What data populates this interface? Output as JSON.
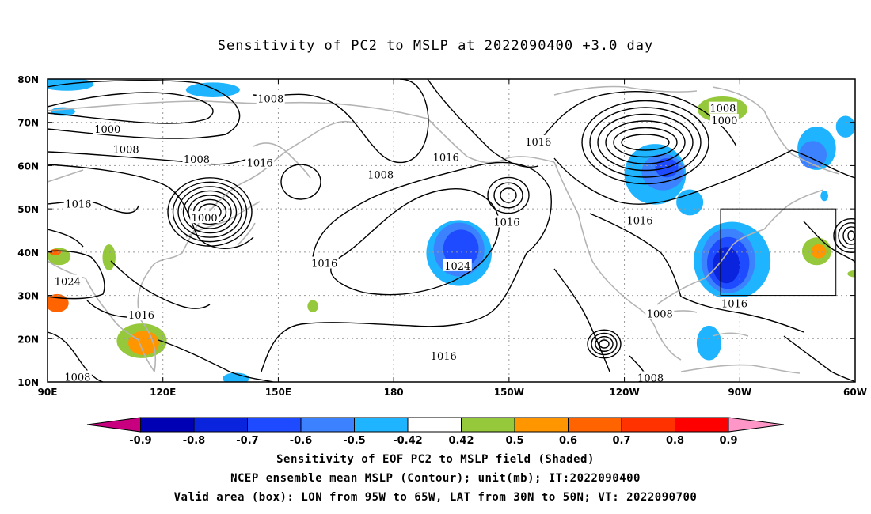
{
  "title": "Sensitivity of PC2 to MSLP at 2022090400 +3.0 day",
  "map": {
    "projection": "cylindrical-equidistant",
    "lon_range": [
      90,
      300
    ],
    "lat_range": [
      10,
      80
    ],
    "lat_ticks": [
      "80N",
      "70N",
      "60N",
      "50N",
      "40N",
      "30N",
      "20N",
      "10N"
    ],
    "lon_ticks": [
      "90E",
      "120E",
      "150E",
      "180",
      "150W",
      "120W",
      "90W",
      "60W"
    ],
    "grid": "dotted",
    "valid_box": {
      "lon": [
        265,
        295
      ],
      "lat": [
        30,
        50
      ]
    },
    "contour_labels": [
      {
        "text": "1008",
        "lon": 148.0,
        "lat": 75.5
      },
      {
        "text": "1000",
        "lon": 105.6,
        "lat": 68.5
      },
      {
        "text": "1008",
        "lon": 110.4,
        "lat": 63.8
      },
      {
        "text": "1008",
        "lon": 128.8,
        "lat": 61.5
      },
      {
        "text": "1016",
        "lon": 145.2,
        "lat": 60.7
      },
      {
        "text": "1016",
        "lon": 98.0,
        "lat": 51.2
      },
      {
        "text": "1000",
        "lon": 130.8,
        "lat": 48.0
      },
      {
        "text": "1008",
        "lon": 176.6,
        "lat": 58.0
      },
      {
        "text": "1016",
        "lon": 193.6,
        "lat": 62.0
      },
      {
        "text": "1016",
        "lon": 217.6,
        "lat": 65.6
      },
      {
        "text": "1008",
        "lon": 265.6,
        "lat": 73.3
      },
      {
        "text": "1000",
        "lon": 266.0,
        "lat": 70.5
      },
      {
        "text": "1016",
        "lon": 244.0,
        "lat": 47.4
      },
      {
        "text": "1016",
        "lon": 209.4,
        "lat": 47.0
      },
      {
        "text": "1024",
        "lon": 196.6,
        "lat": 36.9
      },
      {
        "text": "1016",
        "lon": 162.0,
        "lat": 37.5
      },
      {
        "text": "1024",
        "lon": 95.2,
        "lat": 33.3
      },
      {
        "text": "1016",
        "lon": 114.4,
        "lat": 25.5
      },
      {
        "text": "1016",
        "lon": 193.0,
        "lat": 16.0
      },
      {
        "text": "1008",
        "lon": 249.2,
        "lat": 25.8
      },
      {
        "text": "1016",
        "lon": 268.6,
        "lat": 28.2
      },
      {
        "text": "1008",
        "lon": 246.8,
        "lat": 11.0
      },
      {
        "text": "1008",
        "lon": 97.8,
        "lat": 11.2
      }
    ]
  },
  "colorbar": {
    "tick_labels": [
      "-0.9",
      "-0.8",
      "-0.7",
      "-0.6",
      "-0.5",
      "-0.42",
      "0.42",
      "0.5",
      "0.6",
      "0.7",
      "0.8",
      "0.9"
    ],
    "colors": [
      "#c8007f",
      "#0000b4",
      "#0a23dc",
      "#1e4bff",
      "#3c82ff",
      "#1eb4ff",
      "#ffffff",
      "#96c83c",
      "#ff9600",
      "#ff6400",
      "#ff3200",
      "#ff0000",
      "#ff96c8"
    ]
  },
  "shading": [
    {
      "color": "#1eb4ff",
      "lon": 95,
      "lat": 78.8,
      "rx": 7,
      "ry": 1.5
    },
    {
      "color": "#1eb4ff",
      "lon": 133,
      "lat": 77.5,
      "rx": 7,
      "ry": 1.7
    },
    {
      "color": "#1eb4ff",
      "lon": 94,
      "lat": 72.5,
      "rx": 3.2,
      "ry": 1
    },
    {
      "color": "#1eb4ff",
      "lon": 139,
      "lat": 10.8,
      "rx": 3.5,
      "ry": 1.3
    },
    {
      "color": "#1eb4ff",
      "lon": 197,
      "lat": 39.8,
      "rx": 8.5,
      "ry": 7.6
    },
    {
      "color": "#3c82ff",
      "lon": 197,
      "lat": 40.6,
      "rx": 6.6,
      "ry": 6.2
    },
    {
      "color": "#1e4bff",
      "lon": 197.5,
      "lat": 40.8,
      "rx": 4.6,
      "ry": 4.4
    },
    {
      "color": "#96c83c",
      "lon": 265.5,
      "lat": 73,
      "rx": 6.5,
      "ry": 3
    },
    {
      "color": "#ff9600",
      "lon": 266,
      "lat": 73.8,
      "rx": 2,
      "ry": 0.9
    },
    {
      "color": "#1eb4ff",
      "lon": 248,
      "lat": 58,
      "rx": 8,
      "ry": 7
    },
    {
      "color": "#3c82ff",
      "lon": 250,
      "lat": 58.5,
      "rx": 5.5,
      "ry": 4.2
    },
    {
      "color": "#1e4bff",
      "lon": 251,
      "lat": 59.5,
      "rx": 3,
      "ry": 2.2
    },
    {
      "color": "#1eb4ff",
      "lon": 257,
      "lat": 51.5,
      "rx": 3.5,
      "ry": 3
    },
    {
      "color": "#1eb4ff",
      "lon": 290,
      "lat": 64,
      "rx": 5,
      "ry": 5
    },
    {
      "color": "#3c82ff",
      "lon": 289,
      "lat": 62.5,
      "rx": 3.6,
      "ry": 3.2
    },
    {
      "color": "#1eb4ff",
      "lon": 297.5,
      "lat": 69,
      "rx": 2.5,
      "ry": 2.5
    },
    {
      "color": "#1eb4ff",
      "lon": 268,
      "lat": 38,
      "rx": 10,
      "ry": 9
    },
    {
      "color": "#3c82ff",
      "lon": 267,
      "lat": 38,
      "rx": 7,
      "ry": 7.5
    },
    {
      "color": "#1e4bff",
      "lon": 267,
      "lat": 37.5,
      "rx": 5.5,
      "ry": 6
    },
    {
      "color": "#0a23dc",
      "lon": 266.5,
      "lat": 37,
      "rx": 3.5,
      "ry": 4.2
    },
    {
      "color": "#1eb4ff",
      "lon": 262,
      "lat": 19,
      "rx": 3.2,
      "ry": 4
    },
    {
      "color": "#96c83c",
      "lon": 290,
      "lat": 40.2,
      "rx": 3.8,
      "ry": 3.2
    },
    {
      "color": "#ff9600",
      "lon": 290.5,
      "lat": 40.2,
      "rx": 2,
      "ry": 1.6
    },
    {
      "color": "#96c83c",
      "lon": 93,
      "lat": 39,
      "rx": 3,
      "ry": 2
    },
    {
      "color": "#ff6400",
      "lon": 92,
      "lat": 40,
      "rx": 1.5,
      "ry": 0.7
    },
    {
      "color": "#96c83c",
      "lon": 106,
      "lat": 38.8,
      "rx": 1.7,
      "ry": 3
    },
    {
      "color": "#ff6400",
      "lon": 92.5,
      "lat": 28.2,
      "rx": 3,
      "ry": 2.1
    },
    {
      "color": "#96c83c",
      "lon": 114.5,
      "lat": 19.5,
      "rx": 6.5,
      "ry": 4
    },
    {
      "color": "#ff9600",
      "lon": 115,
      "lat": 19,
      "rx": 4,
      "ry": 2.8
    },
    {
      "color": "#96c83c",
      "lon": 159,
      "lat": 27.5,
      "rx": 1.4,
      "ry": 1.4
    },
    {
      "color": "#96c83c",
      "lon": 300,
      "lat": 35,
      "rx": 2,
      "ry": 0.8
    },
    {
      "color": "#1eb4ff",
      "lon": 292,
      "lat": 53,
      "rx": 1,
      "ry": 1.2
    }
  ],
  "caption": [
    "Sensitivity of EOF PC2 to MSLP field (Shaded)",
    "NCEP ensemble mean MSLP (Contour); unit(mb); IT:2022090400",
    "Valid area (box): LON from 95W to 65W, LAT from 30N to 50N; VT: 2022090700"
  ]
}
